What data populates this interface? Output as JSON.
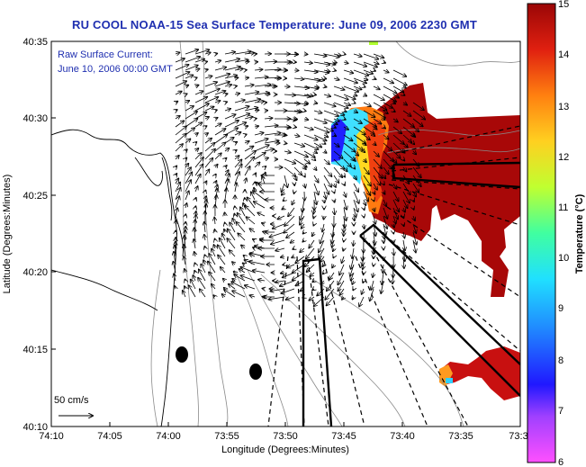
{
  "title": "RU COOL  NOAA-15  Sea Surface Temperature:  June 09, 2006 2230 GMT",
  "annotation": {
    "line1": "Raw Surface Current:",
    "line2": "June 10, 2006 00:00 GMT"
  },
  "scale_label": "50 cm/s",
  "axes": {
    "xlabel": "Longitude (Degrees:Minutes)",
    "ylabel": "Latitude (Degrees:Minutes)",
    "x_ticks": [
      "74:10",
      "74:05",
      "74:00",
      "73:55",
      "73:50",
      "73:45",
      "73:40",
      "73:35",
      "73:3"
    ],
    "y_ticks": [
      "40:35",
      "40:30",
      "40:25",
      "40:20",
      "40:15",
      "40:10"
    ]
  },
  "colorbar": {
    "label": "Temperature (°C)",
    "ticks": [
      "15",
      "14",
      "13",
      "12",
      "11",
      "10",
      "9",
      "8",
      "7",
      "6"
    ],
    "min": 6,
    "max": 15,
    "colors": [
      "#ff40ff",
      "#a040ff",
      "#3020ff",
      "#2080ff",
      "#20d0ff",
      "#30ffb0",
      "#a0ff40",
      "#ffe020",
      "#ff9010",
      "#f03010",
      "#a00808"
    ]
  },
  "buoys": 2
}
